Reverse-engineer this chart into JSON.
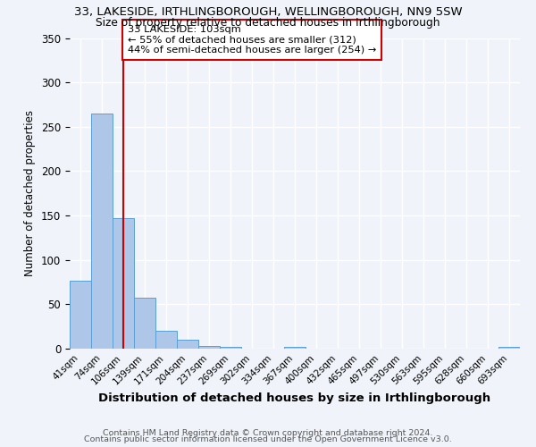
{
  "title1": "33, LAKESIDE, IRTHLINGBOROUGH, WELLINGBOROUGH, NN9 5SW",
  "title2": "Size of property relative to detached houses in Irthlingborough",
  "xlabel": "Distribution of detached houses by size in Irthlingborough",
  "ylabel": "Number of detached properties",
  "footer1": "Contains HM Land Registry data © Crown copyright and database right 2024.",
  "footer2": "Contains public sector information licensed under the Open Government Licence v3.0.",
  "annotation_line1": "33 LAKESIDE: 103sqm",
  "annotation_line2": "← 55% of detached houses are smaller (312)",
  "annotation_line3": "44% of semi-detached houses are larger (254) →",
  "bar_labels": [
    "41sqm",
    "74sqm",
    "106sqm",
    "139sqm",
    "171sqm",
    "204sqm",
    "237sqm",
    "269sqm",
    "302sqm",
    "334sqm",
    "367sqm",
    "400sqm",
    "432sqm",
    "465sqm",
    "497sqm",
    "530sqm",
    "563sqm",
    "595sqm",
    "628sqm",
    "660sqm",
    "693sqm"
  ],
  "bar_values": [
    77,
    265,
    147,
    57,
    20,
    10,
    3,
    2,
    0,
    0,
    2,
    0,
    0,
    0,
    0,
    0,
    0,
    0,
    0,
    0,
    2
  ],
  "bar_color": "#aec6e8",
  "bar_edge_color": "#5a9fd4",
  "red_line_index": 2,
  "ylim": [
    0,
    350
  ],
  "yticks": [
    0,
    50,
    100,
    150,
    200,
    250,
    300,
    350
  ],
  "box_color": "#cc0000",
  "background_color": "#f0f4fa",
  "grid_color": "#ffffff"
}
